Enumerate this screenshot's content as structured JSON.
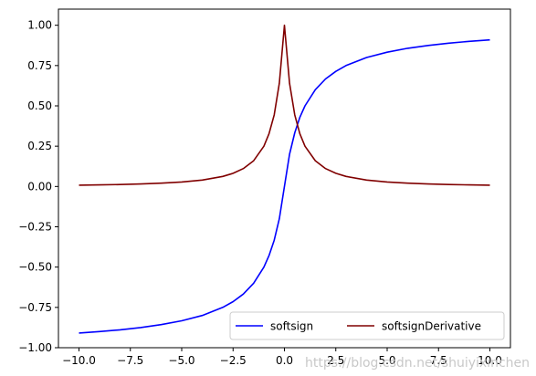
{
  "chart_data": {
    "type": "line",
    "title": "",
    "xlabel": "",
    "ylabel": "",
    "xlim": [
      -11.0,
      11.0
    ],
    "ylim": [
      -1.0,
      1.1
    ],
    "grid": false,
    "legend_position": "lower-right",
    "xticks": [
      "−10.0",
      "−7.5",
      "−5.0",
      "−2.5",
      "0.0",
      "2.5",
      "5.0",
      "7.5",
      "10.0"
    ],
    "xtick_values": [
      -10,
      -7.5,
      -5,
      -2.5,
      0,
      2.5,
      5,
      7.5,
      10
    ],
    "yticks": [
      "−1.00",
      "−0.75",
      "−0.50",
      "−0.25",
      "0.00",
      "0.25",
      "0.50",
      "0.75",
      "1.00"
    ],
    "ytick_values": [
      -1,
      -0.75,
      -0.5,
      -0.25,
      0,
      0.25,
      0.5,
      0.75,
      1
    ],
    "x": [
      -10,
      -9,
      -8,
      -7,
      -6,
      -5,
      -4,
      -3,
      -2.5,
      -2,
      -1.5,
      -1,
      -0.75,
      -0.5,
      -0.25,
      0,
      0.25,
      0.5,
      0.75,
      1,
      1.5,
      2,
      2.5,
      3,
      4,
      5,
      6,
      7,
      8,
      9,
      10
    ],
    "series": [
      {
        "name": "softsign",
        "color": "#0000ff",
        "values": [
          -0.909,
          -0.9,
          -0.889,
          -0.875,
          -0.857,
          -0.833,
          -0.8,
          -0.75,
          -0.714,
          -0.667,
          -0.6,
          -0.5,
          -0.429,
          -0.333,
          -0.2,
          0,
          0.2,
          0.333,
          0.429,
          0.5,
          0.6,
          0.667,
          0.714,
          0.75,
          0.8,
          0.833,
          0.857,
          0.875,
          0.889,
          0.9,
          0.909
        ]
      },
      {
        "name": "softsignDerivative",
        "color": "#800000",
        "values": [
          0.0083,
          0.01,
          0.0123,
          0.0156,
          0.0204,
          0.0278,
          0.04,
          0.0625,
          0.0816,
          0.111,
          0.16,
          0.25,
          0.327,
          0.444,
          0.64,
          1.0,
          0.64,
          0.444,
          0.327,
          0.25,
          0.16,
          0.111,
          0.0816,
          0.0625,
          0.04,
          0.0278,
          0.0204,
          0.0156,
          0.0123,
          0.01,
          0.0083
        ]
      }
    ],
    "watermark": "https://blog.csdn.net/shuiyixinchen"
  }
}
